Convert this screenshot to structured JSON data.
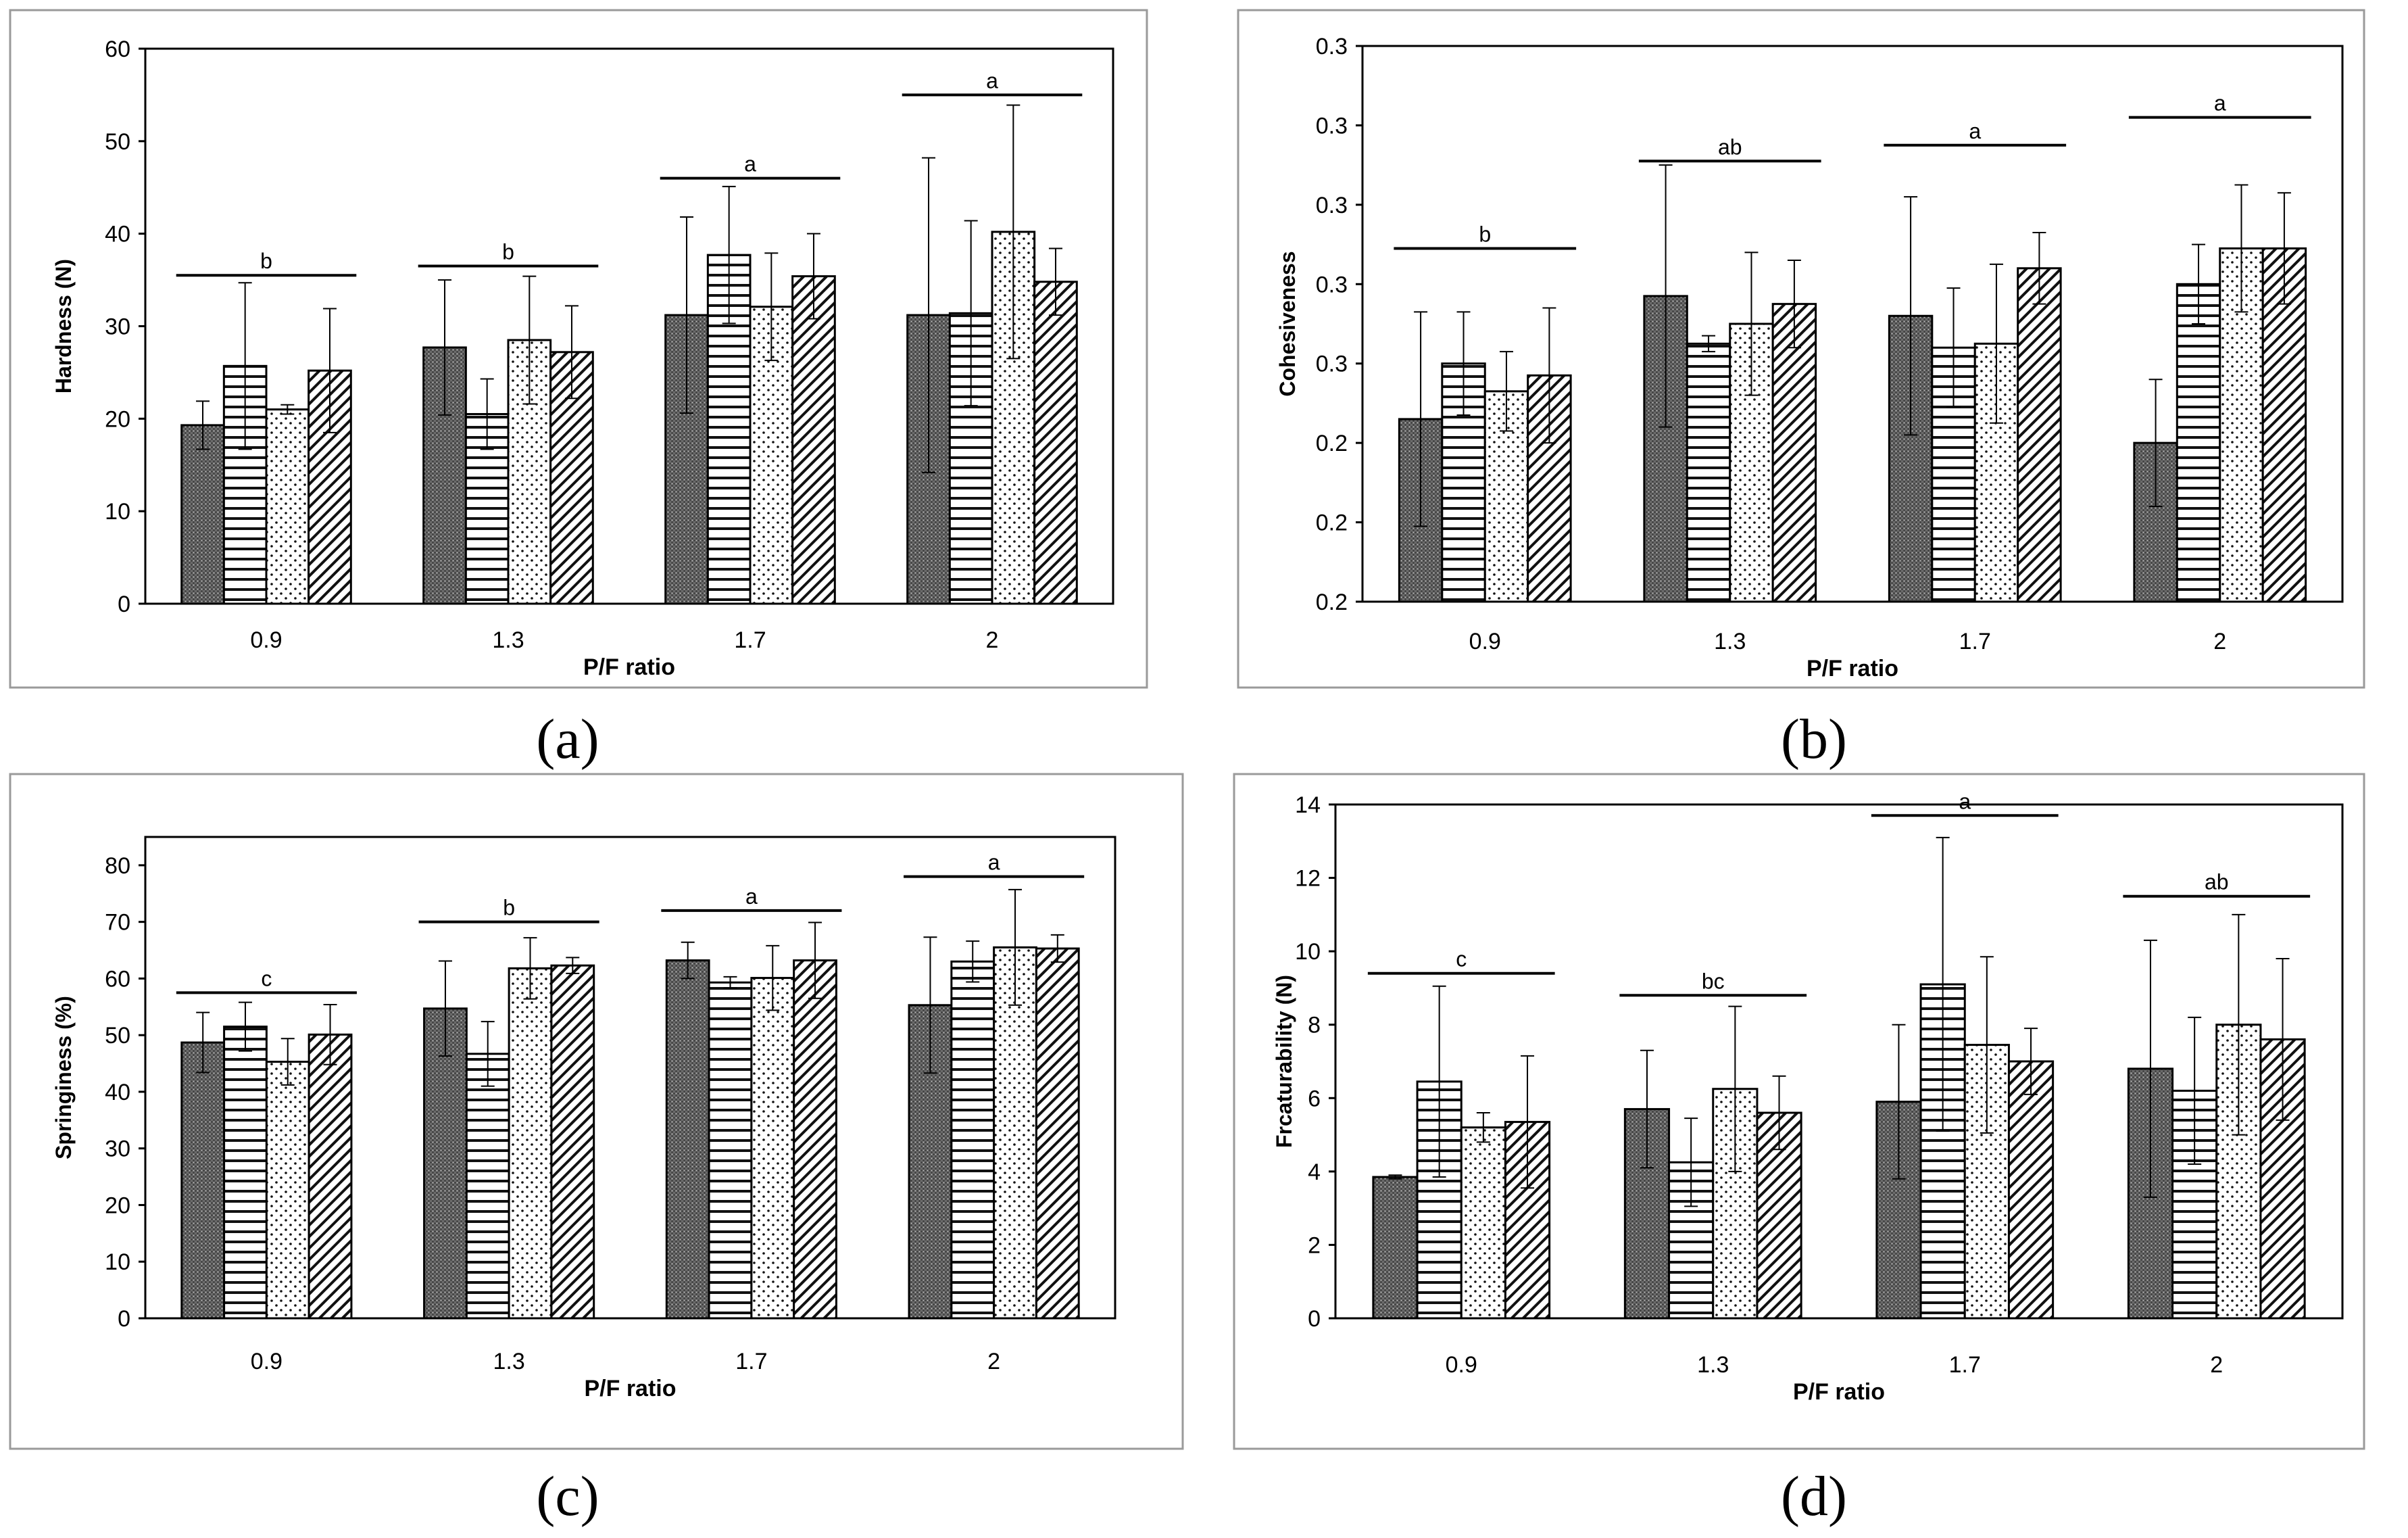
{
  "figure": {
    "captions": [
      "(a)",
      "(b)",
      "(c)",
      "(d)"
    ]
  },
  "colors": {
    "frame": "#9a9a9a",
    "axis": "#000000",
    "bar_stroke": "#000000",
    "dots_dark": "#3a3a3a",
    "background": "#ffffff"
  },
  "chart_data": [
    {
      "id": "a",
      "type": "bar",
      "title": "",
      "xlabel": "P/F ratio",
      "ylabel": "Hardness (N)",
      "categories": [
        "0.9",
        "1.3",
        "1.7",
        "2"
      ],
      "ylim": [
        0,
        60
      ],
      "yticks": [
        0,
        10,
        20,
        30,
        40,
        50,
        60
      ],
      "ytick_labels": [
        "0",
        "10",
        "20",
        "30",
        "40",
        "50",
        "60"
      ],
      "series": [
        {
          "name": "dense-dots",
          "pattern": "dense-dots",
          "values": [
            19.3,
            27.7,
            31.2,
            31.2
          ],
          "err": [
            2.6,
            7.3,
            10.6,
            17.0
          ]
        },
        {
          "name": "horizontal-lines",
          "pattern": "horizontal-lines",
          "values": [
            25.7,
            20.5,
            37.7,
            31.4
          ],
          "err": [
            9.0,
            3.8,
            7.4,
            10.0
          ]
        },
        {
          "name": "sparse-dots",
          "pattern": "sparse-dots",
          "values": [
            21.0,
            28.5,
            32.1,
            40.2
          ],
          "err": [
            0.5,
            6.9,
            5.8,
            13.7
          ]
        },
        {
          "name": "diagonal-lines",
          "pattern": "diagonal-lines",
          "values": [
            25.2,
            27.2,
            35.4,
            34.8
          ],
          "err": [
            6.7,
            5.0,
            4.6,
            3.6
          ]
        }
      ],
      "significance": [
        {
          "group": "0.9",
          "letter": "b",
          "y": 35.5
        },
        {
          "group": "1.3",
          "letter": "b",
          "y": 36.5
        },
        {
          "group": "1.7",
          "letter": "a",
          "y": 46.0
        },
        {
          "group": "2",
          "letter": "a",
          "y": 55.0
        }
      ]
    },
    {
      "id": "b",
      "type": "bar",
      "title": "",
      "xlabel": "P/F ratio",
      "ylabel": "Cohesiveness",
      "categories": [
        "0.9",
        "1.3",
        "1.7",
        "2"
      ],
      "ylim": [
        0.2,
        0.34
      ],
      "yticks": [
        0.2,
        0.22,
        0.24,
        0.26,
        0.28,
        0.3,
        0.32,
        0.34
      ],
      "ytick_labels": [
        "0.2",
        "0.2",
        "0.2",
        "0.3",
        "0.3",
        "0.3",
        "0.3",
        "0.3"
      ],
      "series": [
        {
          "name": "dense-dots",
          "pattern": "dense-dots",
          "values": [
            0.246,
            0.277,
            0.272,
            0.24
          ],
          "err": [
            0.027,
            0.033,
            0.03,
            0.016
          ]
        },
        {
          "name": "horizontal-lines",
          "pattern": "horizontal-lines",
          "values": [
            0.26,
            0.265,
            0.264,
            0.28
          ],
          "err": [
            0.013,
            0.002,
            0.015,
            0.01
          ]
        },
        {
          "name": "sparse-dots",
          "pattern": "sparse-dots",
          "values": [
            0.253,
            0.27,
            0.265,
            0.289
          ],
          "err": [
            0.01,
            0.018,
            0.02,
            0.016
          ]
        },
        {
          "name": "diagonal-lines",
          "pattern": "diagonal-lines",
          "values": [
            0.257,
            0.275,
            0.284,
            0.289
          ],
          "err": [
            0.017,
            0.011,
            0.009,
            0.014
          ]
        }
      ],
      "significance": [
        {
          "group": "0.9",
          "letter": "b",
          "y": 0.289
        },
        {
          "group": "1.3",
          "letter": "ab",
          "y": 0.311
        },
        {
          "group": "1.7",
          "letter": "a",
          "y": 0.315
        },
        {
          "group": "2",
          "letter": "a",
          "y": 0.322
        }
      ]
    },
    {
      "id": "c",
      "type": "bar",
      "title": "",
      "xlabel": "P/F ratio",
      "ylabel": "Springiness (%)",
      "categories": [
        "0.9",
        "1.3",
        "1.7",
        "2"
      ],
      "ylim": [
        0,
        85
      ],
      "yticks": [
        0,
        10,
        20,
        30,
        40,
        50,
        60,
        70,
        80
      ],
      "ytick_labels": [
        "0",
        "10",
        "20",
        "30",
        "40",
        "50",
        "60",
        "70",
        "80"
      ],
      "series": [
        {
          "name": "dense-dots",
          "pattern": "dense-dots",
          "values": [
            48.7,
            54.7,
            63.2,
            55.3
          ],
          "err": [
            5.3,
            8.4,
            3.2,
            12.0
          ]
        },
        {
          "name": "horizontal-lines",
          "pattern": "horizontal-lines",
          "values": [
            51.5,
            46.7,
            59.3,
            63.0
          ],
          "err": [
            4.3,
            5.7,
            1.0,
            3.6
          ]
        },
        {
          "name": "sparse-dots",
          "pattern": "sparse-dots",
          "values": [
            45.3,
            61.8,
            60.1,
            65.5
          ],
          "err": [
            4.1,
            5.4,
            5.7,
            10.2
          ]
        },
        {
          "name": "diagonal-lines",
          "pattern": "diagonal-lines",
          "values": [
            50.1,
            62.3,
            63.2,
            65.3
          ],
          "err": [
            5.3,
            1.4,
            6.7,
            2.4
          ]
        }
      ],
      "significance": [
        {
          "group": "0.9",
          "letter": "c",
          "y": 57.5
        },
        {
          "group": "1.3",
          "letter": "b",
          "y": 70.0
        },
        {
          "group": "1.7",
          "letter": "a",
          "y": 72.0
        },
        {
          "group": "2",
          "letter": "a",
          "y": 78.0
        }
      ]
    },
    {
      "id": "d",
      "type": "bar",
      "title": "",
      "xlabel": "P/F ratio",
      "ylabel": "Frcaturability (N)",
      "categories": [
        "0.9",
        "1.3",
        "1.7",
        "2"
      ],
      "ylim": [
        0,
        14
      ],
      "yticks": [
        0,
        2,
        4,
        6,
        8,
        10,
        12,
        14
      ],
      "ytick_labels": [
        "0",
        "2",
        "4",
        "6",
        "8",
        "10",
        "12",
        "14"
      ],
      "series": [
        {
          "name": "dense-dots",
          "pattern": "dense-dots",
          "values": [
            3.85,
            5.7,
            5.9,
            6.8
          ],
          "err": [
            0.05,
            1.6,
            2.1,
            3.5
          ]
        },
        {
          "name": "horizontal-lines",
          "pattern": "horizontal-lines",
          "values": [
            6.45,
            4.25,
            9.1,
            6.2
          ],
          "err": [
            2.6,
            1.2,
            4.0,
            2.0
          ]
        },
        {
          "name": "sparse-dots",
          "pattern": "sparse-dots",
          "values": [
            5.2,
            6.25,
            7.45,
            8.0
          ],
          "err": [
            0.4,
            2.25,
            2.4,
            3.0
          ]
        },
        {
          "name": "diagonal-lines",
          "pattern": "diagonal-lines",
          "values": [
            5.35,
            5.6,
            7.0,
            7.6
          ],
          "err": [
            1.8,
            1.0,
            0.9,
            2.2
          ]
        }
      ],
      "significance": [
        {
          "group": "0.9",
          "letter": "c",
          "y": 9.4
        },
        {
          "group": "1.3",
          "letter": "bc",
          "y": 8.8
        },
        {
          "group": "1.7",
          "letter": "a",
          "y": 13.7
        },
        {
          "group": "2",
          "letter": "ab",
          "y": 11.5
        }
      ]
    }
  ]
}
